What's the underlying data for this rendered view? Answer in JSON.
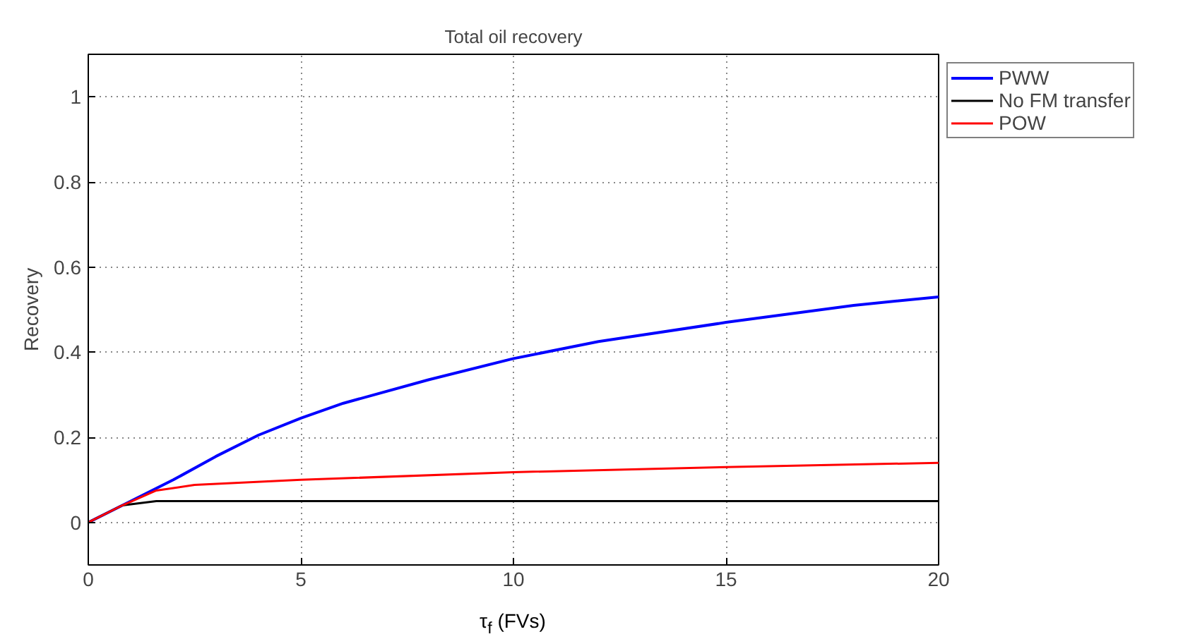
{
  "chart_data": {
    "type": "line",
    "title": "Total oil recovery",
    "xlabel": "τ$_{f}$ (FVs)",
    "ylabel": "Recovery",
    "xlim": [
      0,
      20
    ],
    "ylim": [
      -0.1,
      1.1
    ],
    "xticks": [
      0,
      5,
      10,
      15,
      20
    ],
    "yticks": [
      0,
      0.2,
      0.4,
      0.6,
      0.8,
      1
    ],
    "grid": true,
    "legend": "top right",
    "line_style": "solid",
    "marker": "none",
    "series": [
      {
        "name": "PWW",
        "color": "#0000ff",
        "x": [
          0,
          1,
          2,
          3,
          4,
          5,
          6,
          8,
          10,
          12,
          15,
          18,
          20
        ],
        "values": [
          0,
          0.05,
          0.1,
          0.155,
          0.205,
          0.245,
          0.28,
          0.335,
          0.385,
          0.425,
          0.47,
          0.51,
          0.53
        ]
      },
      {
        "name": "No FM transfer",
        "color": "#000000",
        "x": [
          0,
          0.8,
          1.6,
          5,
          10,
          15,
          20
        ],
        "values": [
          0,
          0.04,
          0.05,
          0.05,
          0.05,
          0.05,
          0.05
        ]
      },
      {
        "name": "POW",
        "color": "#ff0000",
        "x": [
          0,
          0.8,
          1.6,
          2.5,
          5,
          10,
          15,
          20
        ],
        "values": [
          0,
          0.04,
          0.075,
          0.088,
          0.1,
          0.118,
          0.13,
          0.14
        ]
      }
    ]
  }
}
